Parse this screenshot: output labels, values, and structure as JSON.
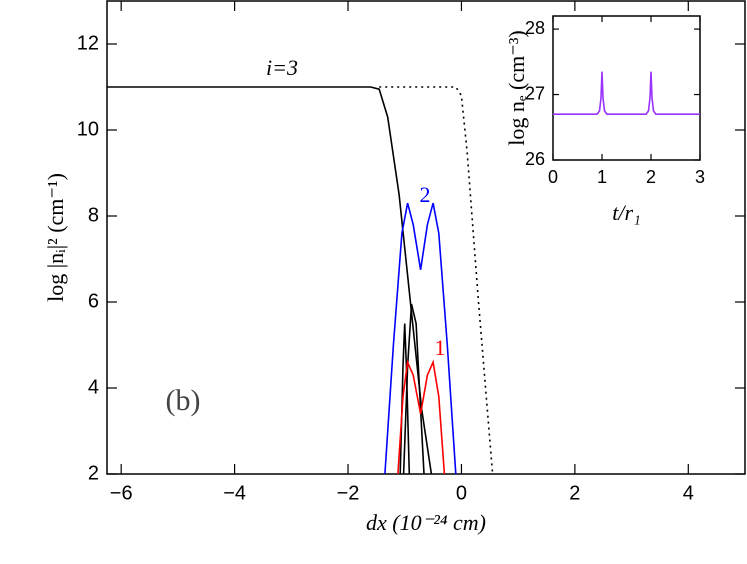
{
  "chart_data": [
    {
      "type": "line",
      "xlabel": "dx (10⁻²⁴ cm)",
      "ylabel": "log |nᵢ|² (cm⁻¹)",
      "xlim": [
        -6.25,
        5
      ],
      "ylim": [
        2,
        13
      ],
      "xticks": [
        {
          "value": -6,
          "label": "−6"
        },
        {
          "value": -4,
          "label": "−4"
        },
        {
          "value": -2,
          "label": "−2"
        },
        0,
        2,
        4
      ],
      "yticks": [
        2,
        4,
        6,
        8,
        10,
        12
      ],
      "annotations": [
        "i=3",
        "2",
        "1",
        "(b)"
      ],
      "series": [
        {
          "color": "#000000",
          "style": "solid",
          "x": [
            -6.25,
            -1.6,
            -1.45,
            -1.3,
            -1.1,
            -0.9,
            -0.7,
            -0.53
          ],
          "values": [
            11,
            11,
            10.95,
            10.3,
            8.5,
            6,
            3.5,
            2
          ]
        },
        {
          "color": "#000000",
          "style": "solid",
          "x": [
            -1.02,
            -0.95,
            -0.88,
            -0.8,
            -0.72,
            -0.66
          ],
          "values": [
            2,
            4.5,
            5.95,
            5.5,
            3.5,
            2
          ]
        },
        {
          "color": "#000000",
          "style": "solid",
          "x": [
            -1.08,
            -1.03,
            -1.0,
            -0.97,
            -0.92
          ],
          "values": [
            2,
            4.5,
            5.5,
            4.5,
            2
          ]
        },
        {
          "color": "#000000",
          "style": "dotted",
          "x": [
            -1.45,
            -0.1,
            0,
            0.1,
            0.3,
            0.55
          ],
          "values": [
            11,
            11,
            10.8,
            9.5,
            6,
            2
          ]
        },
        {
          "color": "#0000ff",
          "style": "solid",
          "x": [
            -1.35,
            -1.2,
            -1.05,
            -0.95,
            -0.85,
            -0.72,
            -0.6,
            -0.5,
            -0.4,
            -0.25,
            -0.1
          ],
          "values": [
            2,
            5,
            7.6,
            8.3,
            7.8,
            6.75,
            7.8,
            8.3,
            7.6,
            5,
            2
          ]
        },
        {
          "color": "#ff0000",
          "style": "solid",
          "x": [
            -1.12,
            -1.03,
            -0.95,
            -0.85,
            -0.72,
            -0.6,
            -0.5,
            -0.4,
            -0.3
          ],
          "values": [
            2,
            3.8,
            4.6,
            4.3,
            3.4,
            4.3,
            4.6,
            3.8,
            2
          ]
        }
      ]
    },
    {
      "type": "line",
      "xlabel": "t/r₁",
      "ylabel": "log nₑ (cm⁻³)",
      "xlim": [
        0,
        3
      ],
      "ylim": [
        26,
        28.2
      ],
      "xticks": [
        0,
        1,
        2,
        3
      ],
      "yticks": [
        26,
        27,
        28
      ],
      "series": [
        {
          "color": "#9933ff",
          "style": "solid",
          "x": [
            0,
            0.9,
            0.95,
            0.98,
            1,
            1.02,
            1.05,
            1.1,
            1.9,
            1.95,
            1.98,
            2,
            2.02,
            2.05,
            2.1,
            3
          ],
          "values": [
            26.7,
            26.7,
            26.75,
            26.95,
            27.35,
            26.95,
            26.75,
            26.7,
            26.7,
            26.75,
            26.95,
            27.35,
            26.95,
            26.75,
            26.7,
            26.7
          ]
        }
      ]
    }
  ]
}
